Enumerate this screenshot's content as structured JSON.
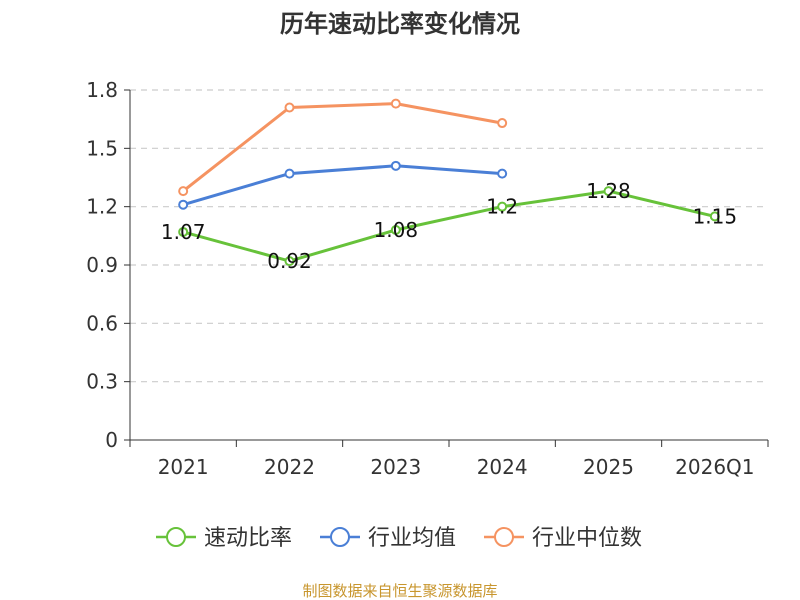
{
  "chart_data": {
    "type": "line",
    "title": "历年速动比率变化情况",
    "categories": [
      "2021",
      "2022",
      "2023",
      "2024",
      "2025",
      "2026Q1"
    ],
    "ylim": [
      0,
      1.8
    ],
    "yticks": [
      "0",
      "0.3",
      "0.6",
      "0.9",
      "1.2",
      "1.5",
      "1.8"
    ],
    "grid": true,
    "legend_position": "bottom",
    "series": [
      {
        "name": "速动比率",
        "color": "#67c23a",
        "values": [
          1.07,
          0.92,
          1.08,
          1.2,
          1.28,
          1.15
        ],
        "labels": [
          "1.07",
          "0.92",
          "1.08",
          "1.2",
          "1.28",
          "1.15"
        ]
      },
      {
        "name": "行业均值",
        "color": "#4a7fd6",
        "values": [
          1.21,
          1.37,
          1.41,
          1.37,
          null,
          null
        ]
      },
      {
        "name": "行业中位数",
        "color": "#f59361",
        "values": [
          1.28,
          1.71,
          1.73,
          1.63,
          null,
          null
        ]
      }
    ],
    "source": "制图数据来自恒生聚源数据库"
  }
}
